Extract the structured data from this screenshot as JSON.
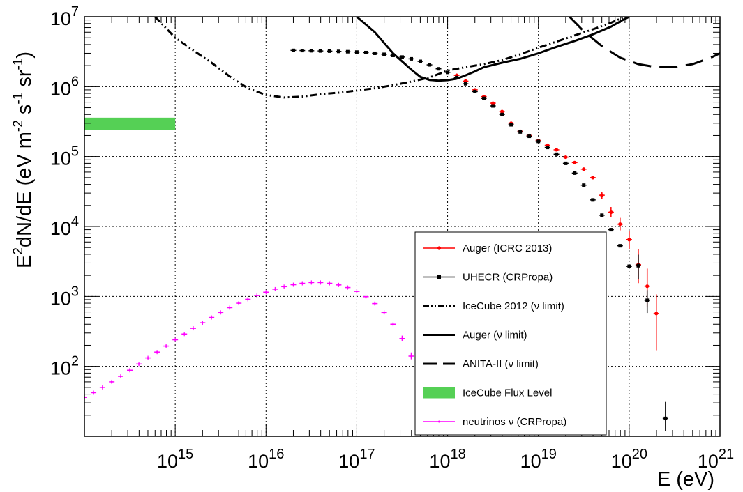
{
  "chart_data": {
    "type": "scatter",
    "title": "",
    "xlabel": "E (eV)",
    "ylabel_parts": {
      "base": "E",
      "sup1": "2",
      "mid": "dN/dE (eV m",
      "sup2": "-2",
      "mid2": " s",
      "sup3": "-1",
      "mid3": " sr",
      "sup4": "-1",
      "end": ")"
    },
    "x_scale": "log",
    "y_scale": "log",
    "xlim": [
      100000000000000.0,
      1e+21
    ],
    "ylim": [
      10,
      10000000.0
    ],
    "grid": true,
    "legend_position": "bottom-right",
    "x_ticks": [
      {
        "value": 1000000000000000.0,
        "base": "10",
        "exp": "15"
      },
      {
        "value": 1e+16,
        "base": "10",
        "exp": "16"
      },
      {
        "value": 1e+17,
        "base": "10",
        "exp": "17"
      },
      {
        "value": 1e+18,
        "base": "10",
        "exp": "18"
      },
      {
        "value": 1e+19,
        "base": "10",
        "exp": "19"
      },
      {
        "value": 1e+20,
        "base": "10",
        "exp": "20"
      },
      {
        "value": 1e+21,
        "base": "10",
        "exp": "21"
      }
    ],
    "y_ticks": [
      {
        "value": 100,
        "base": "10",
        "exp": "2"
      },
      {
        "value": 1000,
        "base": "10",
        "exp": "3"
      },
      {
        "value": 10000,
        "base": "10",
        "exp": "4"
      },
      {
        "value": 100000,
        "base": "10",
        "exp": "5"
      },
      {
        "value": 1000000,
        "base": "10",
        "exp": "6"
      },
      {
        "value": 10000000,
        "base": "10",
        "exp": "7"
      }
    ],
    "series": [
      {
        "name": "Auger (ICRC 2013)",
        "style": "points",
        "color": "#ff0000",
        "points": [
          [
            1.26e+18,
            1450000.0
          ],
          [
            1.58e+18,
            1200000.0
          ],
          [
            2e+18,
            900000.0
          ],
          [
            2.51e+18,
            720000.0
          ],
          [
            3.16e+18,
            580000.0
          ],
          [
            3.98e+18,
            440000.0
          ],
          [
            5.01e+18,
            300000.0
          ],
          [
            6.31e+18,
            230000.0
          ],
          [
            7.94e+18,
            200000.0
          ],
          [
            1e+19,
            170000.0
          ],
          [
            1.26e+19,
            145000.0
          ],
          [
            1.58e+19,
            125000.0
          ],
          [
            2e+19,
            98000.0
          ],
          [
            2.51e+19,
            82000.0
          ],
          [
            3.16e+19,
            66000.0
          ],
          [
            3.98e+19,
            50000.0
          ],
          [
            5.01e+19,
            28000.0
          ],
          [
            6.31e+19,
            16000.0
          ],
          [
            7.94e+19,
            10800.0
          ],
          [
            1e+20,
            6500.0
          ],
          [
            1.26e+20,
            2850.0
          ],
          [
            1.58e+20,
            1400.0
          ],
          [
            1.99e+20,
            570.0
          ]
        ],
        "y_err_low": [
          0,
          0,
          0,
          0,
          0,
          0,
          0,
          0,
          0,
          0,
          0,
          0,
          0,
          0,
          0,
          0,
          3000,
          2500,
          2000,
          1800,
          1300,
          700,
          400
        ],
        "y_err_high": [
          0,
          0,
          0,
          0,
          0,
          0,
          0,
          0,
          0,
          0,
          0,
          0,
          0,
          0,
          0,
          0,
          3000,
          3000,
          2500,
          2200,
          1900,
          1100,
          500
        ]
      },
      {
        "name": "UHECR (CRPropa)",
        "style": "points",
        "color": "#000000",
        "points": [
          [
            2e+16,
            3300000.0
          ],
          [
            2.51e+16,
            3280000.0
          ],
          [
            3.16e+16,
            3260000.0
          ],
          [
            3.98e+16,
            3240000.0
          ],
          [
            5.01e+16,
            3220000.0
          ],
          [
            6.31e+16,
            3190000.0
          ],
          [
            7.94e+16,
            3160000.0
          ],
          [
            1e+17,
            3120000.0
          ],
          [
            1.26e+17,
            3070000.0
          ],
          [
            1.58e+17,
            3000000.0
          ],
          [
            2e+17,
            2900000.0
          ],
          [
            2.51e+17,
            2800000.0
          ],
          [
            3.16e+17,
            2650000.0
          ],
          [
            3.98e+17,
            2500000.0
          ],
          [
            5.01e+17,
            2300000.0
          ],
          [
            6.31e+17,
            2050000.0
          ],
          [
            7.94e+17,
            1800000.0
          ],
          [
            1e+18,
            1600000.0
          ],
          [
            1.26e+18,
            1350000.0
          ],
          [
            1.58e+18,
            1100000.0
          ],
          [
            2e+18,
            850000.0
          ],
          [
            2.51e+18,
            680000.0
          ],
          [
            3.16e+18,
            530000.0
          ],
          [
            3.98e+18,
            400000.0
          ],
          [
            5.01e+18,
            285000.0
          ],
          [
            6.31e+18,
            225000.0
          ],
          [
            7.94e+18,
            195000.0
          ],
          [
            1e+19,
            165000.0
          ],
          [
            1.26e+19,
            135000.0
          ],
          [
            1.58e+19,
            108000.0
          ],
          [
            2e+19,
            80000.0
          ],
          [
            2.51e+19,
            58000.0
          ],
          [
            3.16e+19,
            39000.0
          ],
          [
            3.98e+19,
            24000.0
          ],
          [
            5.01e+19,
            14500.0
          ],
          [
            6.31e+19,
            9000.0
          ],
          [
            7.94e+19,
            5300.0
          ],
          [
            1e+20,
            2700.0
          ],
          [
            1.26e+20,
            2750.0
          ],
          [
            1.58e+20,
            880.0
          ],
          [
            2.51e+20,
            18
          ]
        ],
        "y_err_low": [
          0,
          0,
          0,
          0,
          0,
          0,
          0,
          0,
          0,
          0,
          0,
          0,
          0,
          0,
          0,
          0,
          0,
          0,
          0,
          0,
          0,
          0,
          0,
          0,
          0,
          0,
          0,
          0,
          0,
          0,
          0,
          0,
          0,
          0,
          0,
          0,
          0,
          0,
          1000,
          300,
          6
        ],
        "y_err_high": [
          0,
          0,
          0,
          0,
          0,
          0,
          0,
          0,
          0,
          0,
          0,
          0,
          0,
          0,
          0,
          0,
          0,
          0,
          0,
          0,
          0,
          0,
          0,
          0,
          0,
          0,
          0,
          0,
          0,
          0,
          0,
          0,
          0,
          0,
          0,
          0,
          0,
          0,
          1200,
          350,
          13
        ]
      },
      {
        "name": "IceCube 2012 (ν limit)",
        "style": "dash-dot-dot",
        "color": "#000000",
        "points": [
          [
            600000000000000.0,
            10000000.0
          ],
          [
            1000000000000000.0,
            5000000.0
          ],
          [
            1580000000000000.0,
            3300000.0
          ],
          [
            2510000000000000.0,
            2200000.0
          ],
          [
            3980000000000000.0,
            1400000.0
          ],
          [
            6310000000000000.0,
            950000.0
          ],
          [
            1e+16,
            760000.0
          ],
          [
            1.58e+16,
            700000.0
          ],
          [
            2.51e+16,
            720000.0
          ],
          [
            3.98e+16,
            780000.0
          ],
          [
            6.31e+16,
            820000.0
          ],
          [
            1e+17,
            880000.0
          ],
          [
            1.58e+17,
            950000.0
          ],
          [
            2.51e+17,
            1050000.0
          ],
          [
            3.98e+17,
            1180000.0
          ],
          [
            6.31e+17,
            1350000.0
          ],
          [
            1e+18,
            1700000.0
          ],
          [
            1.58e+18,
            1900000.0
          ],
          [
            2.51e+18,
            2100000.0
          ],
          [
            3.98e+18,
            2400000.0
          ],
          [
            6.31e+18,
            2900000.0
          ],
          [
            1e+19,
            3600000.0
          ],
          [
            1.58e+19,
            4400000.0
          ],
          [
            2.51e+19,
            5400000.0
          ],
          [
            3.98e+19,
            6600000.0
          ],
          [
            6.31e+19,
            8200000.0
          ],
          [
            8.9e+19,
            10000000.0
          ]
        ]
      },
      {
        "name": "Auger (ν limit)",
        "style": "solid",
        "color": "#000000",
        "points": [
          [
            1e+17,
            10000000.0
          ],
          [
            1.58e+17,
            6000000.0
          ],
          [
            2.51e+17,
            3000000.0
          ],
          [
            3.98e+17,
            1750000.0
          ],
          [
            5.01e+17,
            1380000.0
          ],
          [
            6.31e+17,
            1250000.0
          ],
          [
            7.94e+17,
            1220000.0
          ],
          [
            1e+18,
            1240000.0
          ],
          [
            1.26e+18,
            1300000.0
          ],
          [
            1.58e+18,
            1450000.0
          ],
          [
            2e+18,
            1650000.0
          ],
          [
            2.51e+18,
            1900000.0
          ],
          [
            3.98e+18,
            2200000.0
          ],
          [
            6.31e+18,
            2500000.0
          ],
          [
            1e+19,
            3000000.0
          ],
          [
            1.58e+19,
            3700000.0
          ],
          [
            2.51e+19,
            4500000.0
          ],
          [
            3.98e+19,
            5600000.0
          ],
          [
            6.31e+19,
            7200000.0
          ],
          [
            8.5e+19,
            9000000.0
          ],
          [
            1e+20,
            10000000.0
          ]
        ]
      },
      {
        "name": "ANITA-II (ν limit)",
        "style": "long-dash",
        "color": "#000000",
        "points": [
          [
            2.2e+19,
            10000000.0
          ],
          [
            3.16e+19,
            6200000.0
          ],
          [
            5.01e+19,
            3800000.0
          ],
          [
            7.94e+19,
            2600000.0
          ],
          [
            1.26e+20,
            2100000.0
          ],
          [
            2e+20,
            1900000.0
          ],
          [
            3.16e+20,
            1900000.0
          ],
          [
            5.01e+20,
            2100000.0
          ],
          [
            7.94e+20,
            2600000.0
          ],
          [
            1e+21,
            3000000.0
          ]
        ]
      },
      {
        "name": "IceCube Flux Level",
        "style": "band",
        "color": "#55d055",
        "x_range": [
          100000000000000.0,
          1000000000000000.0
        ],
        "y_range": [
          240000.0,
          360000.0
        ]
      },
      {
        "name": "neutrinos ν (CRPropa)",
        "style": "points",
        "color": "#ff00ff",
        "points": [
          [
            100000000000000.0,
            36
          ],
          [
            126000000000000.0,
            42
          ],
          [
            158000000000000.0,
            50
          ],
          [
            200000000000000.0,
            60
          ],
          [
            251000000000000.0,
            72
          ],
          [
            316000000000000.0,
            88
          ],
          [
            398000000000000.0,
            108
          ],
          [
            501000000000000.0,
            132
          ],
          [
            631000000000000.0,
            160
          ],
          [
            794000000000000.0,
            195
          ],
          [
            1000000000000000.0,
            240
          ],
          [
            1260000000000000.0,
            290
          ],
          [
            1580000000000000.0,
            350
          ],
          [
            2000000000000000.0,
            420
          ],
          [
            2510000000000000.0,
            500
          ],
          [
            3160000000000000.0,
            590
          ],
          [
            3980000000000000.0,
            690
          ],
          [
            5010000000000000.0,
            800
          ],
          [
            6310000000000000.0,
            910
          ],
          [
            7940000000000000.0,
            1030
          ],
          [
            1e+16,
            1150
          ],
          [
            1.26e+16,
            1270
          ],
          [
            1.58e+16,
            1380
          ],
          [
            2e+16,
            1470
          ],
          [
            2.51e+16,
            1540
          ],
          [
            3.16e+16,
            1580
          ],
          [
            3.98e+16,
            1580
          ],
          [
            5.01e+16,
            1540
          ],
          [
            6.31e+16,
            1460
          ],
          [
            7.94e+16,
            1340
          ],
          [
            1e+17,
            1180
          ],
          [
            1.26e+17,
            990
          ],
          [
            1.58e+17,
            790
          ],
          [
            2e+17,
            590
          ],
          [
            2.51e+17,
            400
          ],
          [
            3.16e+17,
            250
          ],
          [
            3.98e+17,
            140
          ],
          [
            5.01e+17,
            70
          ],
          [
            6.31e+17,
            32
          ],
          [
            7.94e+17,
            22
          ],
          [
            1e+18,
            20
          ]
        ],
        "y_err_low": [
          0,
          0,
          0,
          0,
          0,
          0,
          0,
          0,
          0,
          0,
          0,
          0,
          0,
          0,
          0,
          0,
          0,
          0,
          0,
          0,
          0,
          0,
          0,
          0,
          0,
          0,
          0,
          0,
          0,
          0,
          0,
          0,
          0,
          0,
          0,
          20,
          14,
          9,
          5,
          4,
          3
        ],
        "y_err_high": [
          0,
          0,
          0,
          0,
          0,
          0,
          0,
          0,
          0,
          0,
          0,
          0,
          0,
          0,
          0,
          0,
          0,
          0,
          0,
          0,
          0,
          0,
          0,
          0,
          0,
          0,
          0,
          0,
          0,
          0,
          0,
          0,
          0,
          0,
          0,
          25,
          18,
          12,
          7,
          5,
          4
        ]
      }
    ]
  }
}
